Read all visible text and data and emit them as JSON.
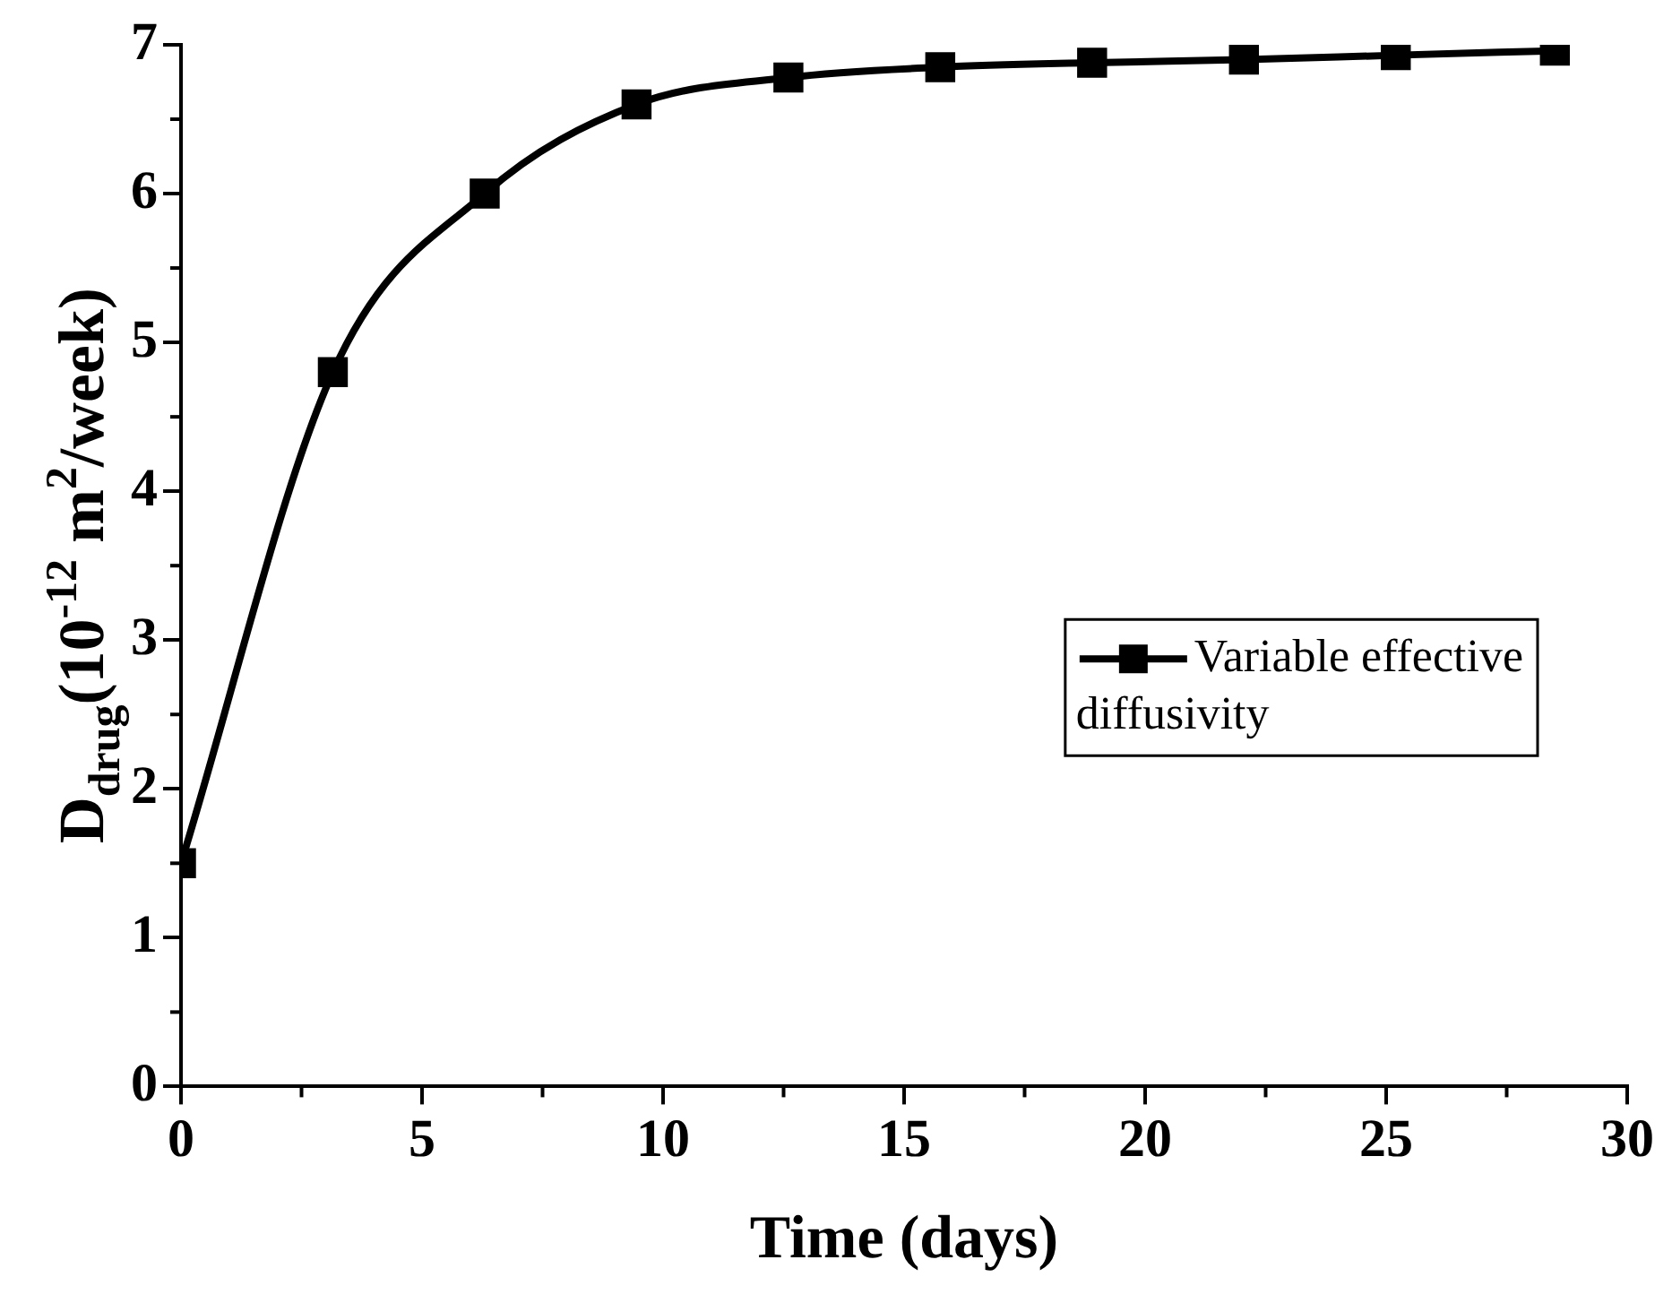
{
  "chart_data": {
    "type": "line",
    "xlabel": "Time (days)",
    "ylabel": "D$_{drug}$(10$^{-12}$ m$^{2}$/week)",
    "x": [
      0,
      3.15,
      6.3,
      9.45,
      12.6,
      15.75,
      18.9,
      22.05,
      25.2,
      28.5
    ],
    "series": [
      {
        "name": "Variable effective diffusivity",
        "color": "#000000",
        "values": [
          1.5,
          4.8,
          6.0,
          6.6,
          6.78,
          6.85,
          6.88,
          6.9,
          6.93,
          6.96
        ]
      }
    ],
    "xlim": [
      0,
      30
    ],
    "xticks": [
      0,
      5,
      10,
      15,
      20,
      25,
      30
    ],
    "ylim": [
      0,
      7
    ],
    "yticks": [
      0,
      1,
      2,
      3,
      4,
      5,
      6,
      7
    ],
    "grid": false,
    "legend": "right",
    "marker": "square",
    "line_style": "solid"
  }
}
